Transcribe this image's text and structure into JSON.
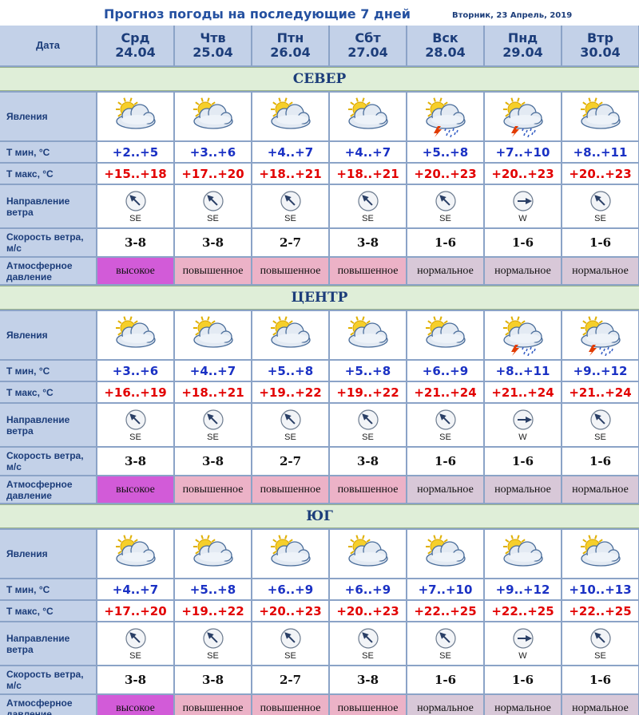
{
  "header": {
    "title": "Прогноз погоды на последующие 7 дней",
    "date": "Вторник, 23 Апрель, 2019"
  },
  "table": {
    "date_header": "Дата",
    "days": [
      {
        "dow": "Срд",
        "date": "24.04"
      },
      {
        "dow": "Чтв",
        "date": "25.04"
      },
      {
        "dow": "Птн",
        "date": "26.04"
      },
      {
        "dow": "Сбт",
        "date": "27.04"
      },
      {
        "dow": "Вск",
        "date": "28.04"
      },
      {
        "dow": "Пнд",
        "date": "29.04"
      },
      {
        "dow": "Втр",
        "date": "30.04"
      }
    ],
    "labels": {
      "phenomena": "Явления",
      "tmin": "Т мин, °С",
      "tmax": "Т макс, °С",
      "wind_dir": "Направление ветра",
      "wind_speed": "Скорость ветра, м/с",
      "pressure": "Атмосферное давление"
    },
    "regions": [
      {
        "name": "СЕВЕР",
        "icons": [
          "partly-cloudy-icon",
          "partly-cloudy-icon",
          "partly-cloudy-icon",
          "partly-cloudy-icon",
          "thunderstorm-rain-icon",
          "thunderstorm-rain-icon",
          "partly-cloudy-icon"
        ],
        "tmin": [
          "+2..+5",
          "+3..+6",
          "+4..+7",
          "+4..+7",
          "+5..+8",
          "+7..+10",
          "+8..+11"
        ],
        "tmax": [
          "+15..+18",
          "+17..+20",
          "+18..+21",
          "+18..+21",
          "+20..+23",
          "+20..+23",
          "+20..+23"
        ],
        "wind_dir": [
          "SE",
          "SE",
          "SE",
          "SE",
          "SE",
          "W",
          "SE"
        ],
        "wind_speed": [
          "3-8",
          "3-8",
          "2-7",
          "3-8",
          "1-6",
          "1-6",
          "1-6"
        ],
        "pressure": [
          {
            "label": "высокое",
            "color": "#d25bd8"
          },
          {
            "label": "повышенное",
            "color": "#ecb2c7"
          },
          {
            "label": "повышенное",
            "color": "#ecb2c7"
          },
          {
            "label": "повышенное",
            "color": "#ecb2c7"
          },
          {
            "label": "нормальное",
            "color": "#d8c8d8"
          },
          {
            "label": "нормальное",
            "color": "#d8c8d8"
          },
          {
            "label": "нормальное",
            "color": "#d8c8d8"
          }
        ]
      },
      {
        "name": "ЦЕНТР",
        "icons": [
          "partly-cloudy-icon",
          "partly-cloudy-icon",
          "partly-cloudy-icon",
          "partly-cloudy-icon",
          "partly-cloudy-icon",
          "thunderstorm-rain-icon",
          "thunderstorm-rain-icon"
        ],
        "tmin": [
          "+3..+6",
          "+4..+7",
          "+5..+8",
          "+5..+8",
          "+6..+9",
          "+8..+11",
          "+9..+12"
        ],
        "tmax": [
          "+16..+19",
          "+18..+21",
          "+19..+22",
          "+19..+22",
          "+21..+24",
          "+21..+24",
          "+21..+24"
        ],
        "wind_dir": [
          "SE",
          "SE",
          "SE",
          "SE",
          "SE",
          "W",
          "SE"
        ],
        "wind_speed": [
          "3-8",
          "3-8",
          "2-7",
          "3-8",
          "1-6",
          "1-6",
          "1-6"
        ],
        "pressure": [
          {
            "label": "высокое",
            "color": "#d25bd8"
          },
          {
            "label": "повышенное",
            "color": "#ecb2c7"
          },
          {
            "label": "повышенное",
            "color": "#ecb2c7"
          },
          {
            "label": "повышенное",
            "color": "#ecb2c7"
          },
          {
            "label": "нормальное",
            "color": "#d8c8d8"
          },
          {
            "label": "нормальное",
            "color": "#d8c8d8"
          },
          {
            "label": "нормальное",
            "color": "#d8c8d8"
          }
        ]
      },
      {
        "name": "ЮГ",
        "icons": [
          "partly-cloudy-icon",
          "partly-cloudy-icon",
          "partly-cloudy-icon",
          "partly-cloudy-icon",
          "partly-cloudy-icon",
          "partly-cloudy-icon",
          "partly-cloudy-icon"
        ],
        "tmin": [
          "+4..+7",
          "+5..+8",
          "+6..+9",
          "+6..+9",
          "+7..+10",
          "+9..+12",
          "+10..+13"
        ],
        "tmax": [
          "+17..+20",
          "+19..+22",
          "+20..+23",
          "+20..+23",
          "+22..+25",
          "+22..+25",
          "+22..+25"
        ],
        "wind_dir": [
          "SE",
          "SE",
          "SE",
          "SE",
          "SE",
          "W",
          "SE"
        ],
        "wind_speed": [
          "3-8",
          "3-8",
          "2-7",
          "3-8",
          "1-6",
          "1-6",
          "1-6"
        ],
        "pressure": [
          {
            "label": "высокое",
            "color": "#d25bd8"
          },
          {
            "label": "повышенное",
            "color": "#ecb2c7"
          },
          {
            "label": "повышенное",
            "color": "#ecb2c7"
          },
          {
            "label": "повышенное",
            "color": "#ecb2c7"
          },
          {
            "label": "нормальное",
            "color": "#d8c8d8"
          },
          {
            "label": "нормальное",
            "color": "#d8c8d8"
          },
          {
            "label": "нормальное",
            "color": "#d8c8d8"
          }
        ]
      }
    ]
  }
}
